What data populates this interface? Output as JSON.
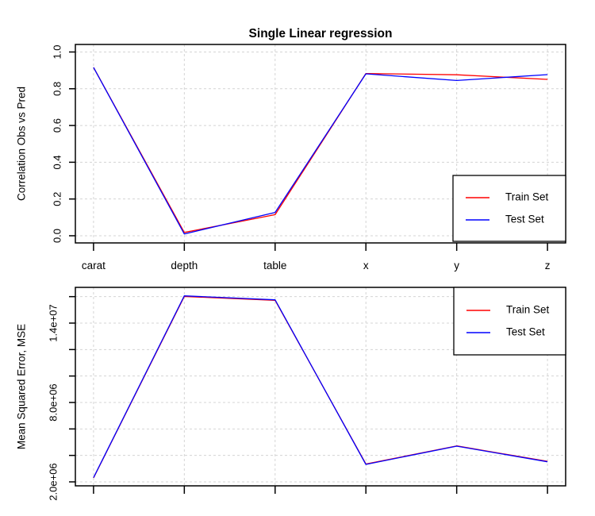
{
  "figure": {
    "background": "#ffffff"
  },
  "colors": {
    "train": "#ff0000",
    "test": "#0000ff",
    "grid": "#d4d4d4",
    "axis": "#000000"
  },
  "chart_data": [
    {
      "type": "line",
      "title": "Single Linear regression",
      "xlabel": "",
      "ylabel": "Correlation Obs vs Pred",
      "categories": [
        "carat",
        "depth",
        "table",
        "x",
        "y",
        "z"
      ],
      "series": [
        {
          "name": "Train Set",
          "color": "#ff0000",
          "values": [
            0.916,
            0.018,
            0.115,
            0.883,
            0.876,
            0.851
          ]
        },
        {
          "name": "Test Set",
          "color": "#0000ff",
          "values": [
            0.916,
            0.01,
            0.127,
            0.881,
            0.845,
            0.877
          ]
        }
      ],
      "ylim": [
        0.0,
        1.0
      ],
      "yticks": [
        0.0,
        0.2,
        0.4,
        0.6,
        0.8,
        1.0
      ],
      "ytick_labels": [
        "0.0",
        "0.2",
        "0.4",
        "0.6",
        "0.8",
        "1.0"
      ],
      "grid": true,
      "grid_style": "dashed",
      "show_x_tick_labels": true,
      "legend": {
        "position": "bottomright",
        "entries": [
          "Train Set",
          "Test Set"
        ]
      }
    },
    {
      "type": "line",
      "title": "",
      "xlabel": "",
      "ylabel": "Mean Squared Error, MSE",
      "categories": [
        "carat",
        "depth",
        "table",
        "x",
        "y",
        "z"
      ],
      "series": [
        {
          "name": "Train Set",
          "color": "#ff0000",
          "values": [
            2300000,
            16010000,
            15720000,
            3350000,
            4720000,
            3550000
          ]
        },
        {
          "name": "Test Set",
          "color": "#0000ff",
          "values": [
            2320000,
            16060000,
            15760000,
            3320000,
            4700000,
            3520000
          ]
        }
      ],
      "ylim": [
        2000000,
        16000000
      ],
      "yticks": [
        2000000,
        4000000,
        6000000,
        8000000,
        10000000,
        12000000,
        14000000,
        16000000
      ],
      "ytick_labels": [
        "2.0e+06",
        "",
        "",
        "8.0e+06",
        "",
        "",
        "1.4e+07",
        ""
      ],
      "grid": true,
      "grid_style": "dashed",
      "show_x_tick_labels": false,
      "legend": {
        "position": "topright",
        "entries": [
          "Train Set",
          "Test Set"
        ]
      }
    }
  ]
}
